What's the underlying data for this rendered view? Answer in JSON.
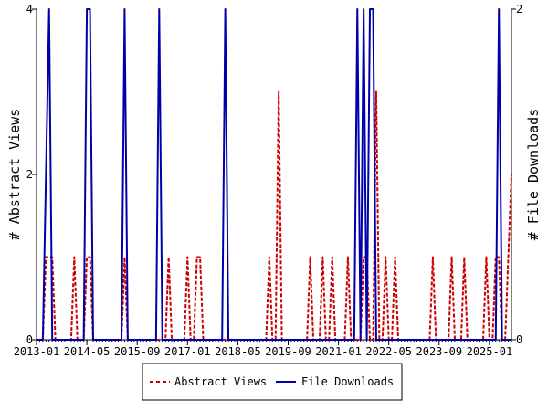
{
  "chart_data": {
    "type": "line",
    "title": "",
    "xlabel": "",
    "ylabel_left": "# Abstract Views",
    "ylabel_right": "# File Downloads",
    "x_range": [
      "2013-01",
      "2025-08"
    ],
    "x_ticks": [
      "2013-01",
      "2014-05",
      "2015-09",
      "2017-01",
      "2018-05",
      "2019-09",
      "2021-01",
      "2022-05",
      "2023-09",
      "2025-01"
    ],
    "ylim_left": [
      0,
      4
    ],
    "yticks_left": [
      "0",
      "2",
      "4"
    ],
    "ylim_right": [
      0,
      2
    ],
    "yticks_right": [
      "0",
      "2"
    ],
    "grid": false,
    "legend_position": "bottom",
    "series": [
      {
        "name": "Abstract Views",
        "axis": "left",
        "color": "#cc0000",
        "style": "dashed",
        "points": [
          [
            "2013-04",
            1
          ],
          [
            "2013-05",
            1
          ],
          [
            "2013-06",
            1
          ],
          [
            "2014-01",
            1
          ],
          [
            "2014-05",
            1
          ],
          [
            "2014-06",
            1
          ],
          [
            "2015-05",
            1
          ],
          [
            "2016-07",
            1
          ],
          [
            "2017-01",
            1
          ],
          [
            "2017-04",
            1
          ],
          [
            "2017-05",
            1
          ],
          [
            "2019-03",
            1
          ],
          [
            "2019-06",
            3
          ],
          [
            "2020-04",
            1
          ],
          [
            "2020-08",
            1
          ],
          [
            "2020-11",
            1
          ],
          [
            "2021-04",
            1
          ],
          [
            "2021-09",
            1
          ],
          [
            "2021-10",
            1
          ],
          [
            "2022-01",
            3
          ],
          [
            "2022-04",
            1
          ],
          [
            "2022-07",
            1
          ],
          [
            "2023-07",
            1
          ],
          [
            "2024-01",
            1
          ],
          [
            "2024-05",
            1
          ],
          [
            "2024-12",
            1
          ],
          [
            "2025-03",
            1
          ],
          [
            "2025-04",
            1
          ],
          [
            "2025-07",
            1
          ],
          [
            "2025-08",
            2
          ]
        ]
      },
      {
        "name": "File Downloads",
        "axis": "right",
        "color": "#0000aa",
        "style": "solid",
        "points": [
          [
            "2013-04",
            1
          ],
          [
            "2013-05",
            2
          ],
          [
            "2014-05",
            2
          ],
          [
            "2014-06",
            2
          ],
          [
            "2015-05",
            2
          ],
          [
            "2016-04",
            2
          ],
          [
            "2018-01",
            2
          ],
          [
            "2021-07",
            2
          ],
          [
            "2021-09",
            2
          ],
          [
            "2021-11",
            2
          ],
          [
            "2021-12",
            2
          ],
          [
            "2025-04",
            2
          ]
        ]
      }
    ]
  }
}
